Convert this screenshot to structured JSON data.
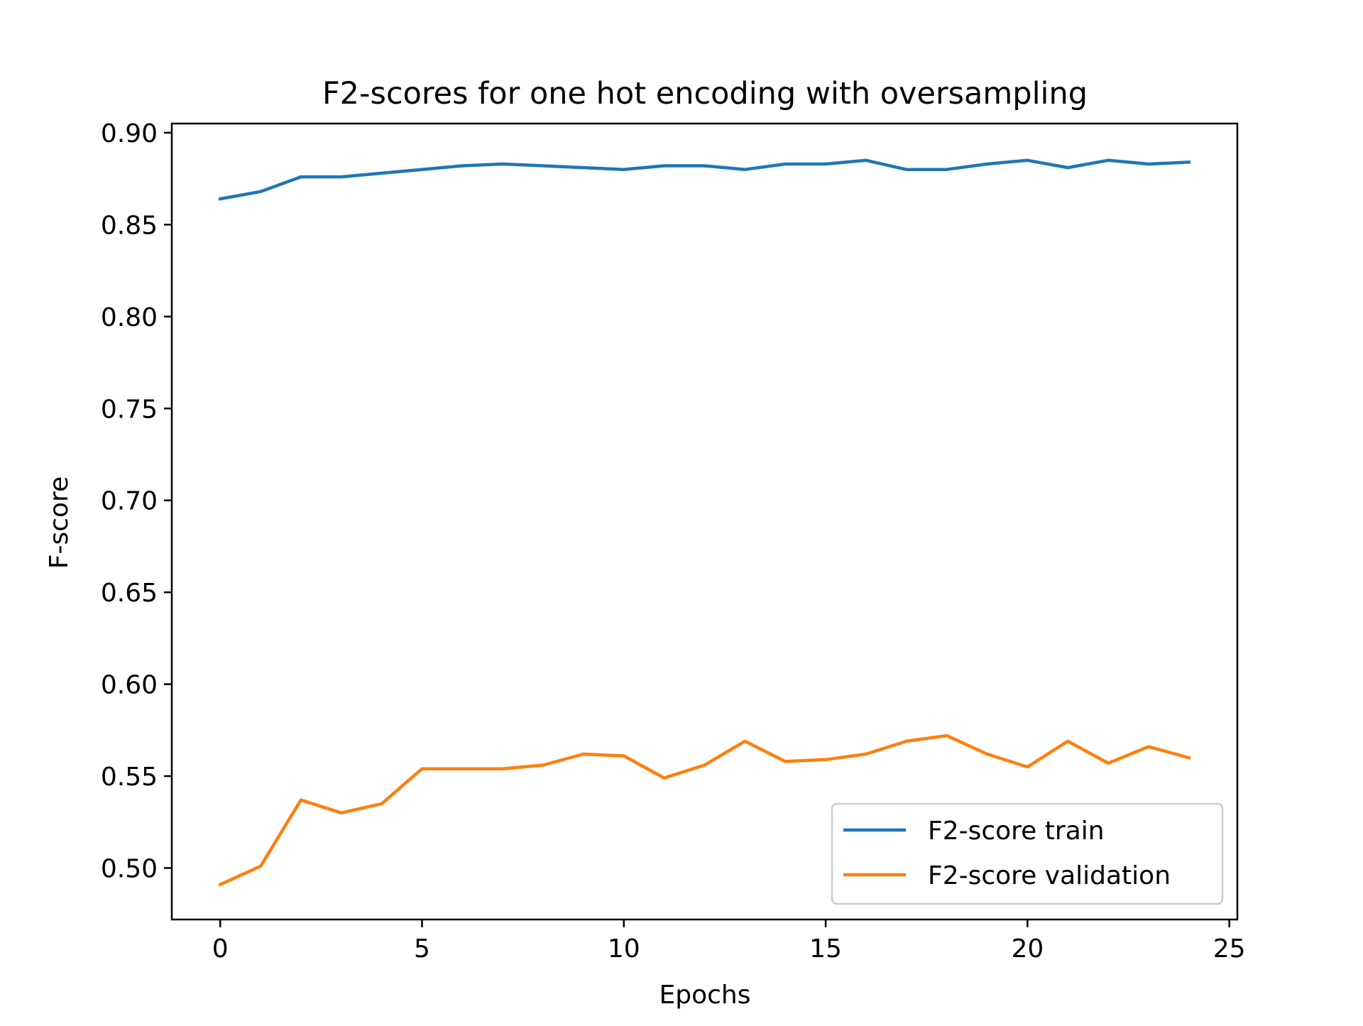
{
  "chart_data": {
    "type": "line",
    "title": "F2-scores for one hot encoding with oversampling",
    "xlabel": "Epochs",
    "ylabel": "F-score",
    "xlim": [
      -1.2,
      25.2
    ],
    "ylim": [
      0.472,
      0.905
    ],
    "xticks": [
      0,
      5,
      10,
      15,
      20,
      25
    ],
    "yticks": [
      0.5,
      0.55,
      0.6,
      0.65,
      0.7,
      0.75,
      0.8,
      0.85,
      0.9
    ],
    "ytick_labels": [
      "0.50",
      "0.55",
      "0.60",
      "0.65",
      "0.70",
      "0.75",
      "0.80",
      "0.85",
      "0.90"
    ],
    "grid": false,
    "legend_position": "lower-right",
    "x": [
      0,
      1,
      2,
      3,
      4,
      5,
      6,
      7,
      8,
      9,
      10,
      11,
      12,
      13,
      14,
      15,
      16,
      17,
      18,
      19,
      20,
      21,
      22,
      23,
      24
    ],
    "series": [
      {
        "name": "F2-score train",
        "color": "#1f77b4",
        "values": [
          0.864,
          0.868,
          0.876,
          0.876,
          0.878,
          0.88,
          0.882,
          0.883,
          0.882,
          0.881,
          0.88,
          0.882,
          0.882,
          0.88,
          0.883,
          0.883,
          0.885,
          0.88,
          0.88,
          0.883,
          0.885,
          0.881,
          0.885,
          0.883,
          0.884
        ]
      },
      {
        "name": "F2-score validation",
        "color": "#ff7f0e",
        "values": [
          0.491,
          0.501,
          0.537,
          0.53,
          0.535,
          0.554,
          0.554,
          0.554,
          0.556,
          0.562,
          0.561,
          0.549,
          0.556,
          0.569,
          0.558,
          0.559,
          0.562,
          0.569,
          0.572,
          0.562,
          0.555,
          0.569,
          0.557,
          0.566,
          0.56
        ]
      }
    ]
  }
}
